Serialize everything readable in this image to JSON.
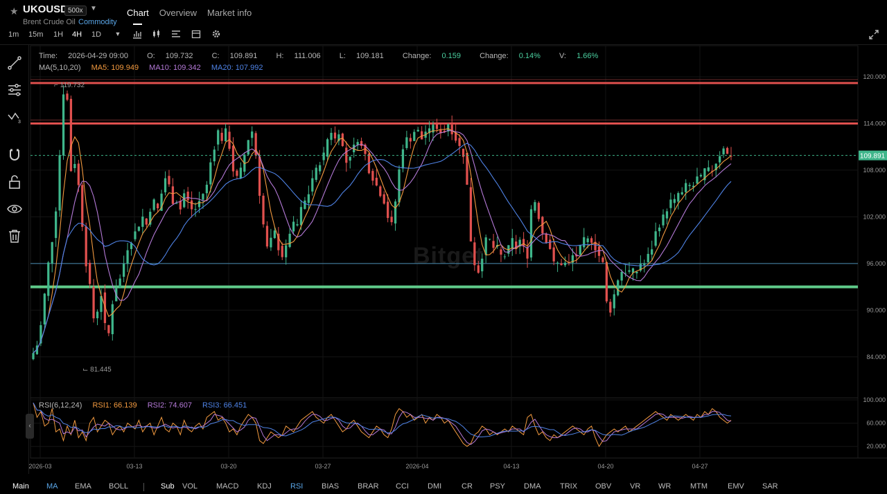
{
  "header": {
    "symbol": "UKOUSD",
    "leverage": "500x",
    "name": "Brent Crude Oil",
    "category": "Commodity",
    "tabs": [
      "Chart",
      "Overview",
      "Market info"
    ],
    "timeframes": [
      "1m",
      "15m",
      "1H",
      "4H",
      "1D"
    ],
    "active_timeframe": "4H"
  },
  "info": {
    "time_label": "Time:",
    "time": "2026-04-29 09:00",
    "open_label": "O:",
    "open": "109.732",
    "close_label": "C:",
    "close": "109.891",
    "high_label": "H:",
    "high": "111.006",
    "low_label": "L:",
    "low": "109.181",
    "change_label": "Change:",
    "change": "0.159",
    "changepct_label": "Change:",
    "changepct": "0.14%",
    "vol_label": "V:",
    "vol": "1.66%",
    "ma_title": "MA(5,10,20)",
    "ma5": "MA5: 109.949",
    "ma10": "MA10: 109.342",
    "ma20": "MA20: 107.992",
    "rsi_title": "RSI(6,12,24)",
    "rsi1": "RSI1: 66.139",
    "rsi2": "RSI2: 74.607",
    "rsi3": "RSI3: 66.451"
  },
  "watermark": "Bitget",
  "bottom": {
    "main": [
      "Main",
      "MA",
      "EMA",
      "BOLL"
    ],
    "sub": [
      "Sub",
      "VOL",
      "MACD",
      "KDJ",
      "RSI",
      "BIAS",
      "BRAR",
      "CCI",
      "DMI",
      "CR",
      "PSY",
      "DMA",
      "TRIX",
      "OBV",
      "VR",
      "WR",
      "MTM",
      "EMV",
      "SAR"
    ]
  },
  "chart_data": {
    "type": "candlestick",
    "price_ticks": [
      "120.000",
      "114.000",
      "108.000",
      "102.000",
      "96.000",
      "90.000",
      "84.000"
    ],
    "rsi_ticks": [
      "100.000",
      "60.000",
      "20.000"
    ],
    "x_ticks": [
      "2026-03",
      "03-13",
      "03-20",
      "03-27",
      "2026-04",
      "04-13",
      "04-20",
      "04-27"
    ],
    "ylim": [
      79,
      124
    ],
    "rsi_ylim": [
      0,
      100
    ],
    "current_price": "109.891",
    "max_marker": "119.732",
    "min_marker": "81.445",
    "levels": [
      {
        "price": 119.2,
        "color": "#e0504e"
      },
      {
        "price": 114.0,
        "color": "#e0504e"
      },
      {
        "price": 96.0,
        "color": "#4a8fb5"
      },
      {
        "price": 93.0,
        "color": "#5fca8a"
      }
    ],
    "colors": {
      "up": "#3fb68b",
      "down": "#e0504e",
      "ma5": "#f39a3f",
      "ma10": "#b57ad8",
      "ma20": "#4f83e6"
    },
    "close_path": [
      84.5,
      85.5,
      88,
      92,
      96,
      99,
      103,
      110,
      118,
      117,
      108,
      109,
      106,
      101,
      96,
      93,
      89,
      90,
      92,
      88,
      87,
      91,
      93,
      94,
      96,
      98,
      99,
      100,
      101,
      102,
      101,
      103,
      104,
      103,
      105,
      107,
      106,
      104,
      104,
      103,
      105,
      104,
      103,
      103,
      104,
      105,
      106,
      109,
      111,
      113,
      112,
      113,
      111,
      108,
      107,
      108,
      110,
      112,
      113,
      110,
      105,
      101,
      98,
      99,
      100,
      98,
      97,
      98,
      100,
      101,
      101,
      103,
      104,
      105,
      107,
      108,
      109,
      110,
      112,
      113,
      112,
      113,
      111,
      109,
      110,
      111,
      112,
      111,
      110,
      108,
      107,
      106,
      105,
      104,
      102,
      101,
      104,
      108,
      111,
      112,
      112,
      113,
      113,
      112,
      113,
      113,
      114,
      113,
      113,
      113,
      114,
      113,
      112,
      111,
      110,
      106,
      99,
      96,
      95,
      97,
      99,
      99,
      98,
      98,
      97,
      97,
      98,
      99,
      98,
      99,
      98,
      97,
      103,
      104,
      102,
      100,
      99,
      98,
      96,
      96,
      96,
      96,
      96,
      97,
      97,
      98,
      99,
      99,
      99,
      98,
      97,
      96,
      91,
      90,
      92,
      94,
      95,
      95,
      95,
      95,
      95,
      96,
      96,
      97,
      98,
      100,
      101,
      102,
      103,
      104,
      104,
      105,
      105,
      106,
      106,
      106,
      107,
      107,
      108,
      108,
      108,
      109,
      110,
      111,
      110,
      110
    ],
    "rsi": [
      95,
      70,
      80,
      55,
      60,
      85,
      45,
      50,
      30,
      55,
      40,
      65,
      35,
      45,
      30,
      60,
      70,
      45,
      55,
      65,
      60,
      40,
      50,
      55,
      45,
      60,
      55,
      50,
      65,
      45,
      55,
      60,
      40,
      55,
      70,
      50,
      45,
      60,
      55,
      40,
      65,
      50,
      45,
      55,
      60,
      50,
      70,
      75,
      80,
      65,
      70,
      60,
      45,
      50,
      40,
      55,
      65,
      75,
      70,
      60,
      30,
      25,
      35,
      45,
      40,
      35,
      40,
      55,
      50,
      45,
      55,
      65,
      70,
      75,
      80,
      70,
      65,
      60,
      70,
      75,
      65,
      55,
      45,
      50,
      60,
      65,
      55,
      45,
      40,
      35,
      45,
      55,
      50,
      40,
      35,
      50,
      75,
      85,
      80,
      70,
      75,
      65,
      70,
      75,
      60,
      70,
      65,
      75,
      70,
      60,
      65,
      55,
      45,
      35,
      25,
      20,
      25,
      40,
      45,
      55,
      50,
      40,
      45,
      40,
      45,
      50,
      45,
      55,
      50,
      45,
      40,
      70,
      75,
      55,
      40,
      45,
      35,
      30,
      40,
      35,
      40,
      45,
      50,
      55,
      50,
      45,
      40,
      50,
      55,
      35,
      20,
      30,
      40,
      45,
      50,
      45,
      50,
      55,
      45,
      50,
      55,
      60,
      65,
      70,
      75,
      80,
      75,
      70,
      65,
      75,
      70,
      65,
      70,
      75,
      70,
      65,
      75,
      70,
      80,
      75,
      85,
      80,
      70,
      65,
      60,
      65
    ]
  }
}
